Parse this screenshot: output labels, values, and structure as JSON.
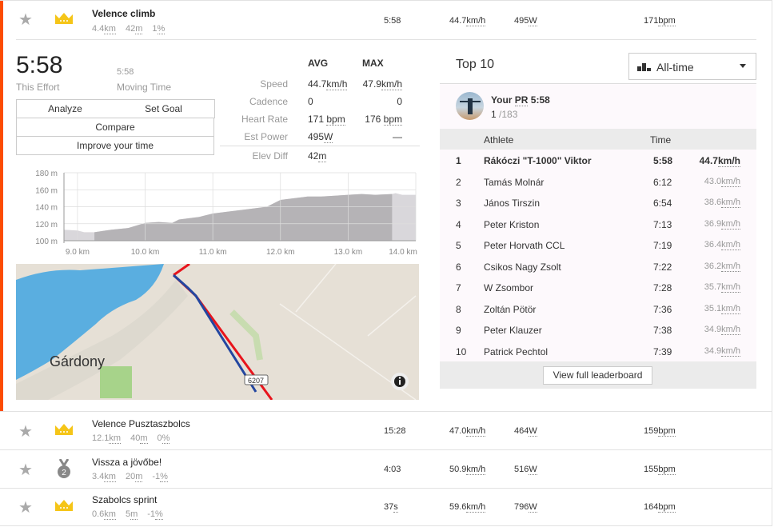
{
  "colors": {
    "accent": "#fc4c02",
    "crown": "#f5c518",
    "route_blue": "#2346a0",
    "route_red": "#e8141c",
    "water": "#5aaee0",
    "land": "#e6e0d6"
  },
  "selected_segment": {
    "name": "Velence climb",
    "distance": "4.4",
    "distance_unit": "km",
    "elev": "42",
    "elev_unit": "m",
    "grade": "1",
    "grade_unit": "%",
    "time": "5:58",
    "speed": "44.7",
    "speed_unit": "km/h",
    "power": "495",
    "power_unit": "W",
    "hr": "171",
    "hr_unit": "bpm",
    "icon": "crown-icon"
  },
  "effort": {
    "time": "5:58",
    "time_label": "This Effort",
    "moving_time": "5:58",
    "moving_label": "Moving Time",
    "buttons": {
      "analyze": "Analyze",
      "set_goal": "Set Goal",
      "compare": "Compare",
      "improve": "Improve your time"
    },
    "stats_headers": {
      "avg": "AVG",
      "max": "MAX"
    },
    "stats": [
      {
        "label": "Speed",
        "avg": "44.7",
        "avg_unit": "km/h",
        "max": "47.9",
        "max_unit": "km/h"
      },
      {
        "label": "Cadence",
        "avg": "0",
        "avg_unit": "",
        "max": "0",
        "max_unit": ""
      },
      {
        "label": "Heart Rate",
        "avg": "171 ",
        "avg_unit": "bpm",
        "max": "176 ",
        "max_unit": "bpm"
      },
      {
        "label": "Est Power",
        "avg": "495",
        "avg_unit": "W",
        "max": "—",
        "max_unit": ""
      }
    ],
    "elev_diff": {
      "label": "Elev Diff",
      "value": "42",
      "unit": "m"
    }
  },
  "chart_data": {
    "type": "area",
    "xlim": [
      8.8,
      14.0
    ],
    "ylim": [
      100,
      180
    ],
    "x_ticks": [
      "9.0 km",
      "10.0 km",
      "11.0 km",
      "12.0 km",
      "13.0 km",
      "14.0 km"
    ],
    "y_ticks": [
      "180 m",
      "160 m",
      "140 m",
      "120 m",
      "100 m"
    ],
    "grid": true,
    "highlight_range": [
      9.25,
      13.65
    ],
    "x": [
      8.8,
      9.0,
      9.1,
      9.25,
      9.5,
      9.75,
      10.0,
      10.2,
      10.4,
      10.5,
      10.8,
      11.0,
      11.2,
      11.5,
      11.8,
      12.0,
      12.2,
      12.4,
      12.6,
      12.8,
      13.0,
      13.2,
      13.4,
      13.65,
      13.7,
      13.8,
      14.0
    ],
    "y": [
      113,
      112,
      110,
      110,
      113,
      115,
      121,
      122,
      121,
      125,
      128,
      132,
      134,
      137,
      140,
      148,
      150,
      152,
      152,
      153,
      154,
      155,
      154,
      155,
      156,
      154,
      154
    ]
  },
  "map": {
    "town": "Gárdony",
    "road_badge": "6207",
    "info_icon": "info-icon"
  },
  "leaderboard": {
    "title": "Top 10",
    "filter": "All-time",
    "filter_icon": "bar-chart-icon",
    "pr": {
      "label": "Your ",
      "pr_abbr": "PR",
      "time": " 5:58",
      "rank": "1",
      "total": " /183"
    },
    "headers": {
      "athlete": "Athlete",
      "time": "Time"
    },
    "rows": [
      {
        "rank": "1",
        "name": "Rákóczi \"T-1000\" Viktor",
        "time": "5:58",
        "speed": "44.7",
        "unit": "km/h"
      },
      {
        "rank": "2",
        "name": "Tamás Molnár",
        "time": "6:12",
        "speed": "43.0",
        "unit": "km/h"
      },
      {
        "rank": "3",
        "name": "János Tirszin",
        "time": "6:54",
        "speed": "38.6",
        "unit": "km/h"
      },
      {
        "rank": "4",
        "name": "Peter Kriston",
        "time": "7:13",
        "speed": "36.9",
        "unit": "km/h"
      },
      {
        "rank": "5",
        "name": "Peter Horvath CCL",
        "time": "7:19",
        "speed": "36.4",
        "unit": "km/h"
      },
      {
        "rank": "6",
        "name": "Csikos Nagy Zsolt",
        "time": "7:22",
        "speed": "36.2",
        "unit": "km/h"
      },
      {
        "rank": "7",
        "name": "W Zsombor",
        "time": "7:28",
        "speed": "35.7",
        "unit": "km/h"
      },
      {
        "rank": "8",
        "name": "Zoltán Pötör",
        "time": "7:36",
        "speed": "35.1",
        "unit": "km/h"
      },
      {
        "rank": "9",
        "name": "Peter Klauzer",
        "time": "7:38",
        "speed": "34.9",
        "unit": "km/h"
      },
      {
        "rank": "10",
        "name": "Patrick Pechtol",
        "time": "7:39",
        "speed": "34.9",
        "unit": "km/h"
      }
    ],
    "view_full": "View full leaderboard"
  },
  "segments": [
    {
      "name": "Velence Pusztaszbolcs",
      "distance": "12.1",
      "elev": "40",
      "grade": "0",
      "time": "15:28",
      "time_unit": "",
      "speed": "47.0",
      "power": "464",
      "hr": "159",
      "icon": "crown-icon"
    },
    {
      "name": "Vissza a jövőbe!",
      "distance": "3.4",
      "elev": "20",
      "grade": "-1",
      "time": "4:03",
      "time_unit": "",
      "speed": "50.9",
      "power": "516",
      "hr": "155",
      "icon": "medal-2-icon",
      "medal": "2"
    },
    {
      "name": "Szabolcs sprint",
      "distance": "0.6",
      "elev": "5",
      "grade": "-1",
      "time": "37",
      "time_unit": "s",
      "speed": "59.6",
      "power": "796",
      "hr": "164",
      "icon": "crown-icon"
    }
  ],
  "units": {
    "km": "km",
    "m": "m",
    "pct": "%",
    "kmh": "km/h",
    "w": "W",
    "bpm": "bpm"
  }
}
